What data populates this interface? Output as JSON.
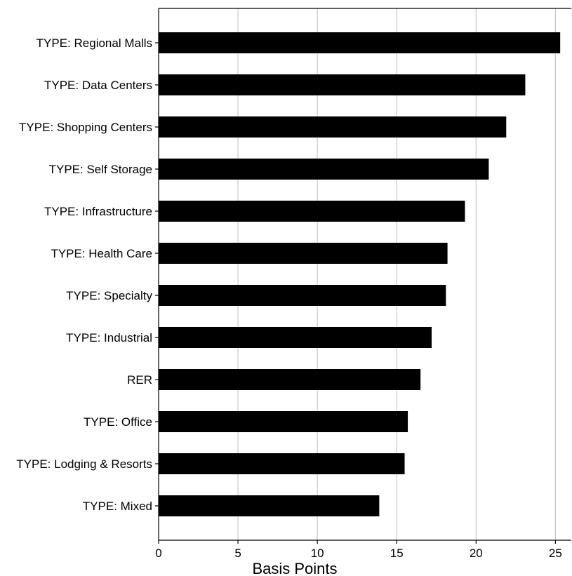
{
  "chart_data": {
    "type": "bar",
    "orientation": "horizontal",
    "categories": [
      "TYPE: Regional Malls",
      "TYPE: Data Centers",
      "TYPE: Shopping Centers",
      "TYPE: Self Storage",
      "TYPE: Infrastructure",
      "TYPE: Health Care",
      "TYPE: Specialty",
      "TYPE: Industrial",
      "RER",
      "TYPE: Office",
      "TYPE: Lodging & Resorts",
      "TYPE: Mixed"
    ],
    "values": [
      25.3,
      23.1,
      21.9,
      20.8,
      19.3,
      18.2,
      18.1,
      17.2,
      16.5,
      15.7,
      15.5,
      13.9
    ],
    "xlabel": "Basis Points",
    "ylabel": "",
    "xlim": [
      0,
      26
    ],
    "xticks": [
      0,
      5,
      10,
      15,
      20,
      25
    ],
    "grid": "vertical",
    "bar_color": "#000000",
    "grid_color": "#c8c8c8"
  }
}
